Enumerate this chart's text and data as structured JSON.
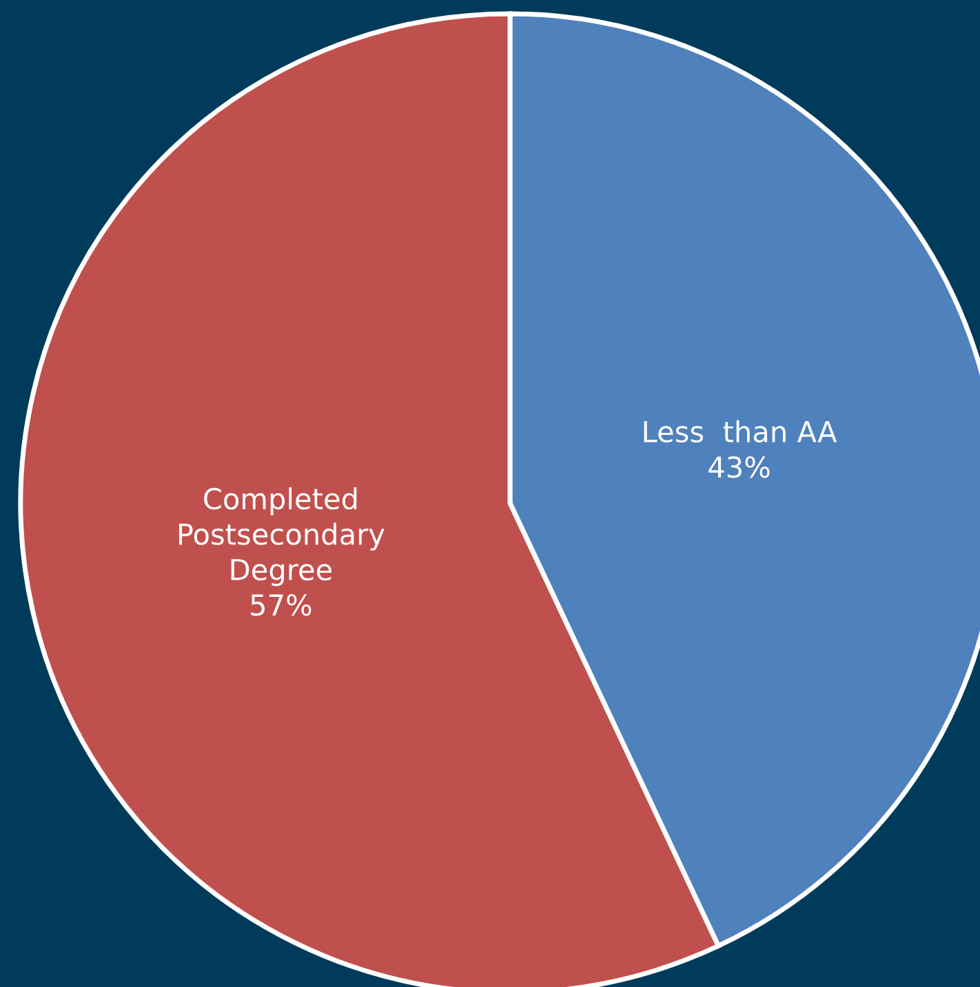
{
  "chart_data": {
    "type": "pie",
    "categories": [
      "Less  than AA",
      "Completed\nPostsecondary\nDegree"
    ],
    "values": [
      43,
      57
    ],
    "value_labels": [
      "43%",
      "57%"
    ],
    "colors": [
      "#4f81bd",
      "#c0504d"
    ],
    "legend": false
  }
}
